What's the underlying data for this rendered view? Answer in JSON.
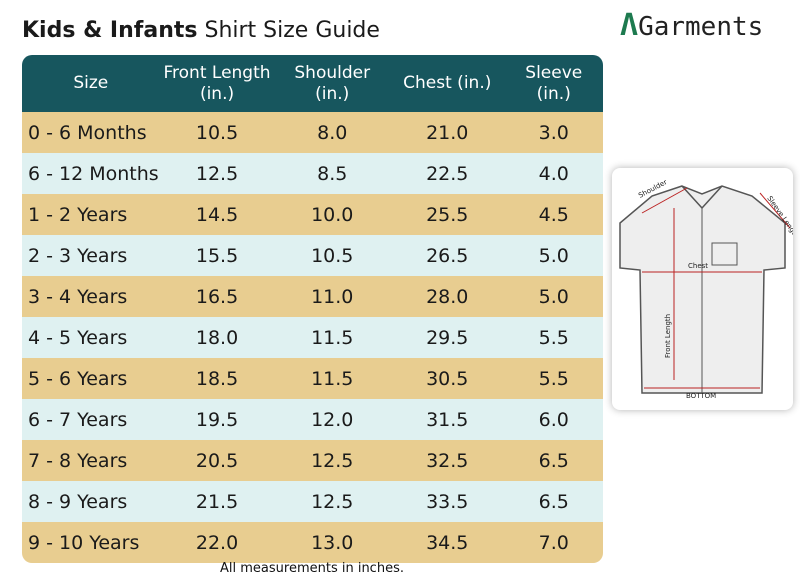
{
  "header": {
    "title_bold": "Kids & Infants",
    "title_rest": "Shirt Size Guide",
    "brand": "Garments"
  },
  "table": {
    "columns": [
      "Size",
      "Front Length (in.)",
      "Shoulder (in.)",
      "Chest (in.)",
      "Sleeve (in.)"
    ],
    "rows": [
      [
        "0 - 6 Months",
        "10.5",
        "8.0",
        "21.0",
        "3.0"
      ],
      [
        "6 - 12 Months",
        "12.5",
        "8.5",
        "22.5",
        "4.0"
      ],
      [
        "1 - 2 Years",
        "14.5",
        "10.0",
        "25.5",
        "4.5"
      ],
      [
        "2 - 3 Years",
        "15.5",
        "10.5",
        "26.5",
        "5.0"
      ],
      [
        "3 - 4 Years",
        "16.5",
        "11.0",
        "28.0",
        "5.0"
      ],
      [
        "4 - 5 Years",
        "18.0",
        "11.5",
        "29.5",
        "5.5"
      ],
      [
        "5 - 6 Years",
        "18.5",
        "11.5",
        "30.5",
        "5.5"
      ],
      [
        "6 - 7 Years",
        "19.5",
        "12.0",
        "31.5",
        "6.0"
      ],
      [
        "7 - 8 Years",
        "20.5",
        "12.5",
        "32.5",
        "6.5"
      ],
      [
        "8 - 9 Years",
        "21.5",
        "12.5",
        "33.5",
        "6.5"
      ],
      [
        "9 - 10 Years",
        "22.0",
        "13.0",
        "34.5",
        "7.0"
      ]
    ]
  },
  "footnote": "All measurements in inches.",
  "diagram": {
    "shoulder": "Shoulder",
    "sleeve": "Sleeve Length",
    "chest": "Chest",
    "front": "Front Length",
    "bottom": "BOTTOM"
  }
}
